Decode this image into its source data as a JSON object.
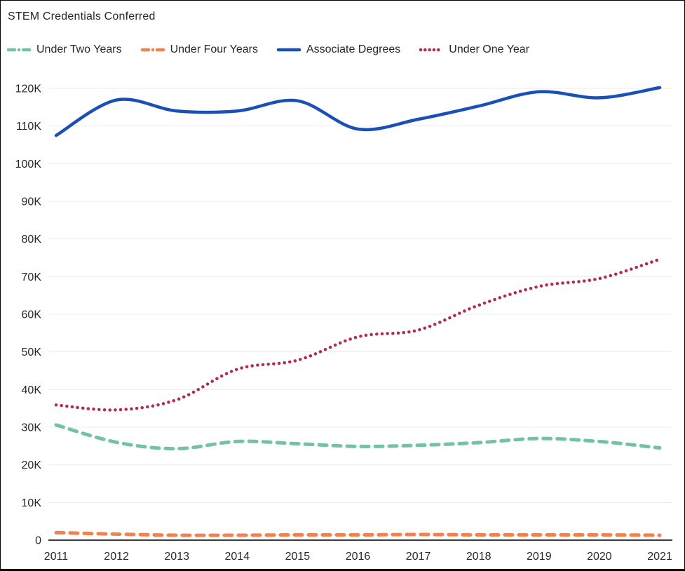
{
  "chart_data": {
    "type": "line",
    "title": "STEM Credentials Conferred",
    "xlabel": "",
    "ylabel": "",
    "x": [
      "2011",
      "2012",
      "2013",
      "2014",
      "2015",
      "2016",
      "2017",
      "2018",
      "2019",
      "2020",
      "2021"
    ],
    "ylim": [
      0,
      120000
    ],
    "ytick_step": 10000,
    "ytick_labels": [
      "0",
      "10K",
      "20K",
      "30K",
      "40K",
      "50K",
      "60K",
      "70K",
      "80K",
      "90K",
      "100K",
      "110K",
      "120K"
    ],
    "grid": true,
    "legend_position": "top",
    "series": [
      {
        "name": "Under Two Years",
        "color": "#72c3a2",
        "style": "dashed",
        "values": [
          30600,
          26000,
          24300,
          26200,
          25600,
          24900,
          25200,
          25900,
          27000,
          26200,
          24500
        ]
      },
      {
        "name": "Under Four Years",
        "color": "#f0824f",
        "style": "dashed",
        "values": [
          2000,
          1600,
          1300,
          1300,
          1400,
          1400,
          1500,
          1400,
          1400,
          1400,
          1300
        ]
      },
      {
        "name": "Associate Degrees",
        "color": "#1a4fb5",
        "style": "solid",
        "values": [
          107500,
          116900,
          114000,
          114000,
          116700,
          109200,
          111800,
          115300,
          119100,
          117500,
          120200
        ]
      },
      {
        "name": "Under One Year",
        "color": "#b02a5c",
        "style": "dotted",
        "values": [
          35900,
          34600,
          37300,
          45400,
          47800,
          54000,
          55800,
          62400,
          67400,
          69500,
          74600
        ]
      }
    ],
    "colors": {
      "grid": "#ebebeb",
      "axis": "#3c3c3c",
      "text": "#27272f"
    }
  }
}
